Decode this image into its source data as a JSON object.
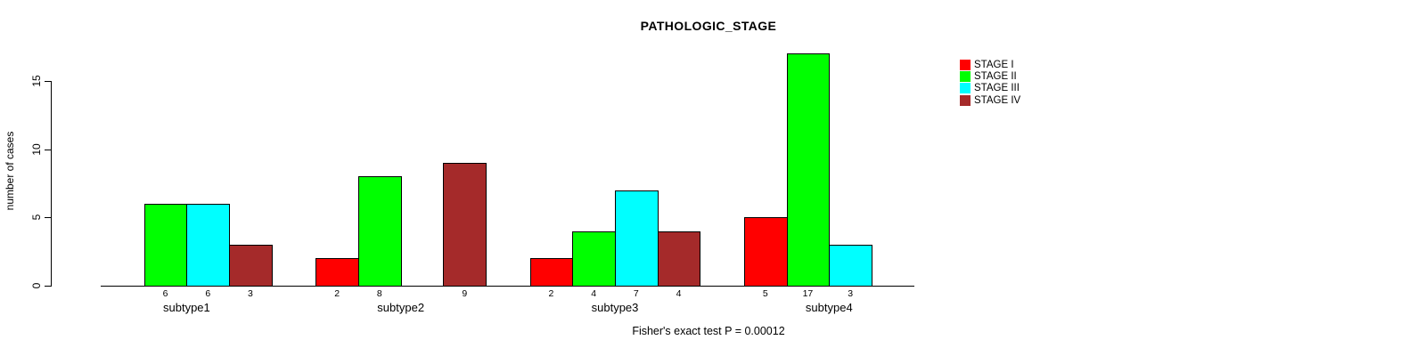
{
  "caption": "Fisher's exact test P = 0.00012",
  "chart_data": {
    "type": "bar",
    "title": "PATHOLOGIC_STAGE",
    "xlabel": "",
    "ylabel": "number of cases",
    "ylim": [
      0,
      17
    ],
    "y_ticks": [
      0,
      5,
      10,
      15
    ],
    "grid": false,
    "legend_position": "top-right",
    "bar_value_labels_shown": true,
    "zero_bars_hidden": true,
    "categories": [
      "subtype1",
      "subtype2",
      "subtype3",
      "subtype4"
    ],
    "series": [
      {
        "name": "STAGE I",
        "color": "#ff0000",
        "values": [
          0,
          2,
          2,
          5
        ]
      },
      {
        "name": "STAGE II",
        "color": "#00ff00",
        "values": [
          6,
          8,
          4,
          17
        ]
      },
      {
        "name": "STAGE III",
        "color": "#00ffff",
        "values": [
          6,
          0,
          7,
          3
        ]
      },
      {
        "name": "STAGE IV",
        "color": "#a52a2a",
        "values": [
          3,
          9,
          4,
          0
        ]
      }
    ]
  }
}
